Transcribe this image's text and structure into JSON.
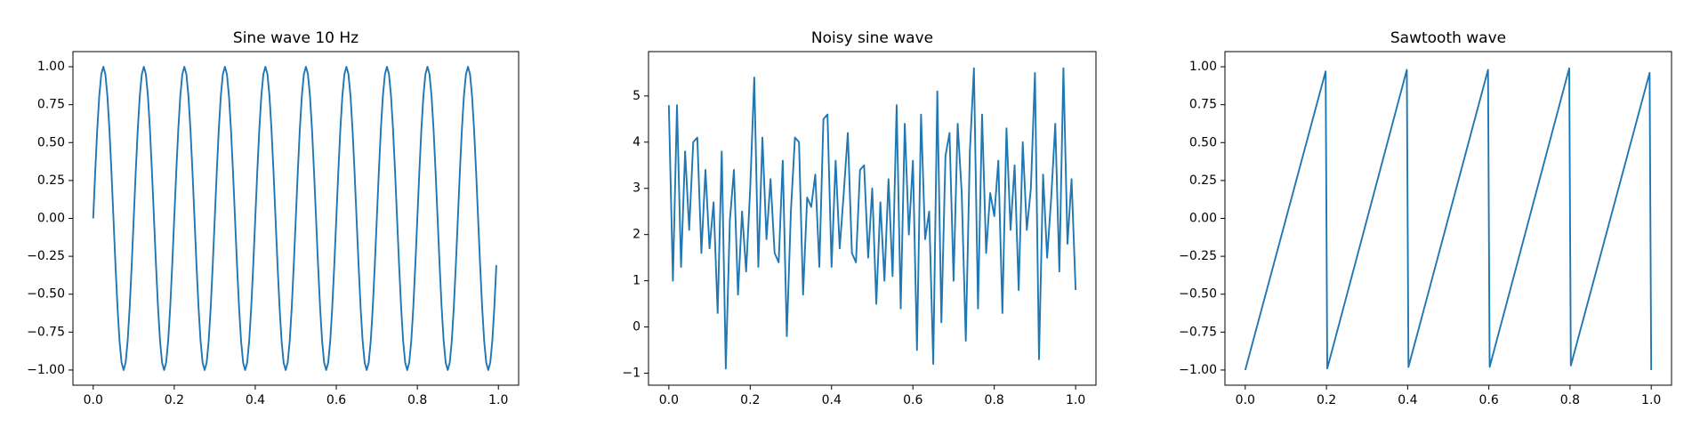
{
  "chart_data": [
    {
      "type": "line",
      "title": "Sine wave 10 Hz",
      "color": "#1f77b4",
      "x": [
        0,
        0.005,
        0.01,
        0.015,
        0.02,
        0.025,
        0.03,
        0.035,
        0.04,
        0.045,
        0.05,
        0.055,
        0.06,
        0.065,
        0.07,
        0.075,
        0.08,
        0.085,
        0.09,
        0.095,
        0.1,
        0.105,
        0.11,
        0.115,
        0.12,
        0.125,
        0.13,
        0.135,
        0.14,
        0.145,
        0.15,
        0.155,
        0.16,
        0.165,
        0.17,
        0.175,
        0.18,
        0.185,
        0.19,
        0.195,
        0.2,
        0.205,
        0.21,
        0.215,
        0.22,
        0.225,
        0.23,
        0.235,
        0.24,
        0.245,
        0.25,
        0.255,
        0.26,
        0.265,
        0.27,
        0.275,
        0.28,
        0.285,
        0.29,
        0.295,
        0.3,
        0.305,
        0.31,
        0.315,
        0.32,
        0.325,
        0.33,
        0.335,
        0.34,
        0.345,
        0.35,
        0.355,
        0.36,
        0.365,
        0.37,
        0.375,
        0.38,
        0.385,
        0.39,
        0.395,
        0.4,
        0.405,
        0.41,
        0.415,
        0.42,
        0.425,
        0.43,
        0.435,
        0.44,
        0.445,
        0.45,
        0.455,
        0.46,
        0.465,
        0.47,
        0.475,
        0.48,
        0.485,
        0.49,
        0.495,
        0.5,
        0.505,
        0.51,
        0.515,
        0.52,
        0.525,
        0.53,
        0.535,
        0.54,
        0.545,
        0.55,
        0.555,
        0.56,
        0.565,
        0.57,
        0.575,
        0.58,
        0.585,
        0.59,
        0.595,
        0.6,
        0.605,
        0.61,
        0.615,
        0.62,
        0.625,
        0.63,
        0.635,
        0.64,
        0.645,
        0.65,
        0.655,
        0.66,
        0.665,
        0.67,
        0.675,
        0.68,
        0.685,
        0.69,
        0.695,
        0.7,
        0.705,
        0.71,
        0.715,
        0.72,
        0.725,
        0.73,
        0.735,
        0.74,
        0.745,
        0.75,
        0.755,
        0.76,
        0.765,
        0.77,
        0.775,
        0.78,
        0.785,
        0.79,
        0.795,
        0.8,
        0.805,
        0.81,
        0.815,
        0.82,
        0.825,
        0.83,
        0.835,
        0.84,
        0.845,
        0.85,
        0.855,
        0.86,
        0.865,
        0.87,
        0.875,
        0.88,
        0.885,
        0.89,
        0.895,
        0.9,
        0.905,
        0.91,
        0.915,
        0.92,
        0.925,
        0.93,
        0.935,
        0.94,
        0.945,
        0.95,
        0.955,
        0.96,
        0.965,
        0.97,
        0.975,
        0.98,
        0.985,
        0.99,
        0.995
      ],
      "values": [
        0,
        0.309,
        0.588,
        0.809,
        0.951,
        1,
        0.951,
        0.809,
        0.588,
        0.309,
        0,
        -0.309,
        -0.588,
        -0.809,
        -0.951,
        -1,
        -0.951,
        -0.809,
        -0.588,
        -0.309,
        0,
        0.309,
        0.588,
        0.809,
        0.951,
        1,
        0.951,
        0.809,
        0.588,
        0.309,
        0,
        -0.309,
        -0.588,
        -0.809,
        -0.951,
        -1,
        -0.951,
        -0.809,
        -0.588,
        -0.309,
        0,
        0.309,
        0.588,
        0.809,
        0.951,
        1,
        0.951,
        0.809,
        0.588,
        0.309,
        0,
        -0.309,
        -0.588,
        -0.809,
        -0.951,
        -1,
        -0.951,
        -0.809,
        -0.588,
        -0.309,
        0,
        0.309,
        0.588,
        0.809,
        0.951,
        1,
        0.951,
        0.809,
        0.588,
        0.309,
        0,
        -0.309,
        -0.588,
        -0.809,
        -0.951,
        -1,
        -0.951,
        -0.809,
        -0.588,
        -0.309,
        0,
        0.309,
        0.588,
        0.809,
        0.951,
        1,
        0.951,
        0.809,
        0.588,
        0.309,
        0,
        -0.309,
        -0.588,
        -0.809,
        -0.951,
        -1,
        -0.951,
        -0.809,
        -0.588,
        -0.309,
        0,
        0.309,
        0.588,
        0.809,
        0.951,
        1,
        0.951,
        0.809,
        0.588,
        0.309,
        0,
        -0.309,
        -0.588,
        -0.809,
        -0.951,
        -1,
        -0.951,
        -0.809,
        -0.588,
        -0.309,
        0,
        0.309,
        0.588,
        0.809,
        0.951,
        1,
        0.951,
        0.809,
        0.588,
        0.309,
        0,
        -0.309,
        -0.588,
        -0.809,
        -0.951,
        -1,
        -0.951,
        -0.809,
        -0.588,
        -0.309,
        0,
        0.309,
        0.588,
        0.809,
        0.951,
        1,
        0.951,
        0.809,
        0.588,
        0.309,
        0,
        -0.309,
        -0.588,
        -0.809,
        -0.951,
        -1,
        -0.951,
        -0.809,
        -0.588,
        -0.309,
        0,
        0.309,
        0.588,
        0.809,
        0.951,
        1,
        0.951,
        0.809,
        0.588,
        0.309,
        0,
        -0.309,
        -0.588,
        -0.809,
        -0.951,
        -1,
        -0.951,
        -0.809,
        -0.588,
        -0.309,
        0,
        0.309,
        0.588,
        0.809,
        0.951,
        1,
        0.951,
        0.809,
        0.588,
        0.309,
        0,
        -0.309,
        -0.588,
        -0.809,
        -0.951,
        -1,
        -0.951,
        -0.809,
        -0.588,
        -0.309
      ],
      "xlim": [
        -0.05,
        1.05
      ],
      "ylim": [
        -1.1,
        1.1
      ],
      "xticks": [
        {
          "value": 0,
          "label": "0.0"
        },
        {
          "value": 0.2,
          "label": "0.2"
        },
        {
          "value": 0.4,
          "label": "0.4"
        },
        {
          "value": 0.6,
          "label": "0.6"
        },
        {
          "value": 0.8,
          "label": "0.8"
        },
        {
          "value": 1,
          "label": "1.0"
        }
      ],
      "yticks": [
        {
          "value": -1,
          "label": "−1.00"
        },
        {
          "value": -0.75,
          "label": "−0.75"
        },
        {
          "value": -0.5,
          "label": "−0.50"
        },
        {
          "value": -0.25,
          "label": "−0.25"
        },
        {
          "value": 0,
          "label": "0.00"
        },
        {
          "value": 0.25,
          "label": "0.25"
        },
        {
          "value": 0.5,
          "label": "0.50"
        },
        {
          "value": 0.75,
          "label": "0.75"
        },
        {
          "value": 1,
          "label": "1.00"
        }
      ]
    },
    {
      "type": "line",
      "title": "Noisy sine wave",
      "color": "#1f77b4",
      "x": [
        0,
        0.01,
        0.02,
        0.03,
        0.04,
        0.05,
        0.06,
        0.07,
        0.08,
        0.09,
        0.1,
        0.11,
        0.12,
        0.13,
        0.14,
        0.15,
        0.16,
        0.17,
        0.18,
        0.19,
        0.2,
        0.21,
        0.22,
        0.23,
        0.24,
        0.25,
        0.26,
        0.27,
        0.28,
        0.29,
        0.3,
        0.31,
        0.32,
        0.33,
        0.34,
        0.35,
        0.36,
        0.37,
        0.38,
        0.39,
        0.4,
        0.41,
        0.42,
        0.43,
        0.44,
        0.45,
        0.46,
        0.47,
        0.48,
        0.49,
        0.5,
        0.51,
        0.52,
        0.53,
        0.54,
        0.55,
        0.56,
        0.57,
        0.58,
        0.59,
        0.6,
        0.61,
        0.62,
        0.63,
        0.64,
        0.65,
        0.66,
        0.67,
        0.68,
        0.69,
        0.7,
        0.71,
        0.72,
        0.73,
        0.74,
        0.75,
        0.76,
        0.77,
        0.78,
        0.79,
        0.8,
        0.81,
        0.82,
        0.83,
        0.84,
        0.85,
        0.86,
        0.87,
        0.88,
        0.89,
        0.9,
        0.91,
        0.92,
        0.93,
        0.94,
        0.95,
        0.96,
        0.97,
        0.98,
        0.99,
        1
      ],
      "values": [
        4.8,
        1.0,
        4.8,
        1.3,
        3.8,
        2.1,
        4.0,
        4.1,
        1.6,
        3.4,
        1.7,
        2.7,
        0.3,
        3.8,
        -0.9,
        2.3,
        3.4,
        0.7,
        2.5,
        1.2,
        3.0,
        5.4,
        1.3,
        4.1,
        1.9,
        3.2,
        1.6,
        1.4,
        3.6,
        -0.2,
        2.5,
        4.1,
        4.0,
        0.7,
        2.8,
        2.6,
        3.3,
        1.3,
        4.5,
        4.6,
        1.3,
        3.6,
        1.7,
        2.9,
        4.2,
        1.6,
        1.4,
        3.4,
        3.5,
        1.5,
        3.0,
        0.5,
        2.7,
        1.0,
        3.2,
        1.1,
        4.8,
        0.4,
        4.4,
        2.0,
        3.6,
        -0.5,
        4.6,
        1.9,
        2.5,
        -0.8,
        5.1,
        0.1,
        3.7,
        4.2,
        1.0,
        4.4,
        2.9,
        -0.3,
        3.8,
        5.6,
        0.4,
        4.6,
        1.6,
        2.9,
        2.4,
        3.6,
        0.3,
        4.3,
        2.1,
        3.5,
        0.8,
        4.0,
        2.1,
        3.0,
        5.5,
        -0.7,
        3.3,
        1.5,
        2.8,
        4.4,
        1.2,
        5.6,
        1.8,
        3.2,
        0.8
      ],
      "xlim": [
        -0.05,
        1.05
      ],
      "ylim": [
        -1.26,
        5.96
      ],
      "xticks": [
        {
          "value": 0,
          "label": "0.0"
        },
        {
          "value": 0.2,
          "label": "0.2"
        },
        {
          "value": 0.4,
          "label": "0.4"
        },
        {
          "value": 0.6,
          "label": "0.6"
        },
        {
          "value": 0.8,
          "label": "0.8"
        },
        {
          "value": 1,
          "label": "1.0"
        }
      ],
      "yticks": [
        {
          "value": -1,
          "label": "−1"
        },
        0,
        1,
        2,
        3,
        4,
        5
      ]
    },
    {
      "type": "line",
      "title": "Sawtooth wave",
      "color": "#1f77b4",
      "x": [
        0,
        0.198,
        0.202,
        0.398,
        0.402,
        0.598,
        0.602,
        0.798,
        0.802,
        0.996,
        1.0
      ],
      "values": [
        -1,
        0.97,
        -0.99,
        0.98,
        -0.98,
        0.98,
        -0.98,
        0.99,
        -0.97,
        0.96,
        -1
      ],
      "xlim": [
        -0.05,
        1.05
      ],
      "ylim": [
        -1.1,
        1.1
      ],
      "xticks": [
        {
          "value": 0,
          "label": "0.0"
        },
        {
          "value": 0.2,
          "label": "0.2"
        },
        {
          "value": 0.4,
          "label": "0.4"
        },
        {
          "value": 0.6,
          "label": "0.6"
        },
        {
          "value": 0.8,
          "label": "0.8"
        },
        {
          "value": 1,
          "label": "1.0"
        }
      ],
      "yticks": [
        {
          "value": -1,
          "label": "−1.00"
        },
        {
          "value": -0.75,
          "label": "−0.75"
        },
        {
          "value": -0.5,
          "label": "−0.50"
        },
        {
          "value": -0.25,
          "label": "−0.25"
        },
        {
          "value": 0,
          "label": "0.00"
        },
        {
          "value": 0.25,
          "label": "0.25"
        },
        {
          "value": 0.5,
          "label": "0.50"
        },
        {
          "value": 0.75,
          "label": "0.75"
        },
        {
          "value": 1,
          "label": "1.00"
        }
      ]
    }
  ]
}
